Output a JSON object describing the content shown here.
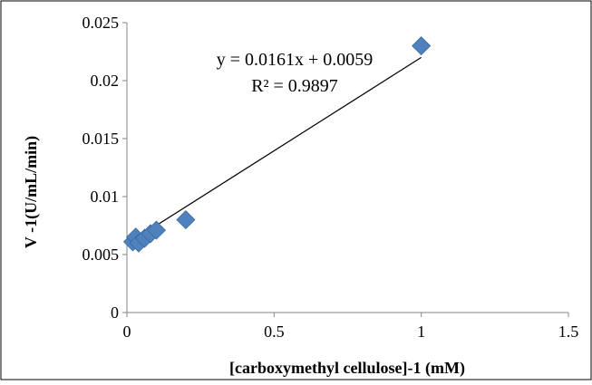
{
  "chart_data": {
    "type": "scatter",
    "xlabel": "[carboxymethyl cellulose]-1 (mM)",
    "ylabel": "V -1(U/mL/min)",
    "xlim": [
      0,
      1.5
    ],
    "ylim": [
      0,
      0.025
    ],
    "x_ticks": [
      "0",
      "0.5",
      "1",
      "1.5"
    ],
    "y_ticks": [
      "0",
      "0.005",
      "0.01",
      "0.015",
      "0.02",
      "0.025"
    ],
    "grid": false,
    "legend": "none",
    "series": [
      {
        "marker": "diamond",
        "color": "#4F81BD",
        "points": [
          {
            "x": 0.02,
            "y": 0.0061
          },
          {
            "x": 0.03,
            "y": 0.0065
          },
          {
            "x": 0.04,
            "y": 0.006
          },
          {
            "x": 0.06,
            "y": 0.0064
          },
          {
            "x": 0.08,
            "y": 0.0068
          },
          {
            "x": 0.1,
            "y": 0.0071
          },
          {
            "x": 0.2,
            "y": 0.008
          },
          {
            "x": 1.0,
            "y": 0.023
          }
        ]
      }
    ],
    "trendline": {
      "slope": 0.0161,
      "intercept": 0.0059,
      "x_range": [
        0.02,
        1.0
      ],
      "color": "#000000",
      "equation": "y = 0.0161x + 0.0059",
      "r2": "R² = 0.9897"
    }
  }
}
